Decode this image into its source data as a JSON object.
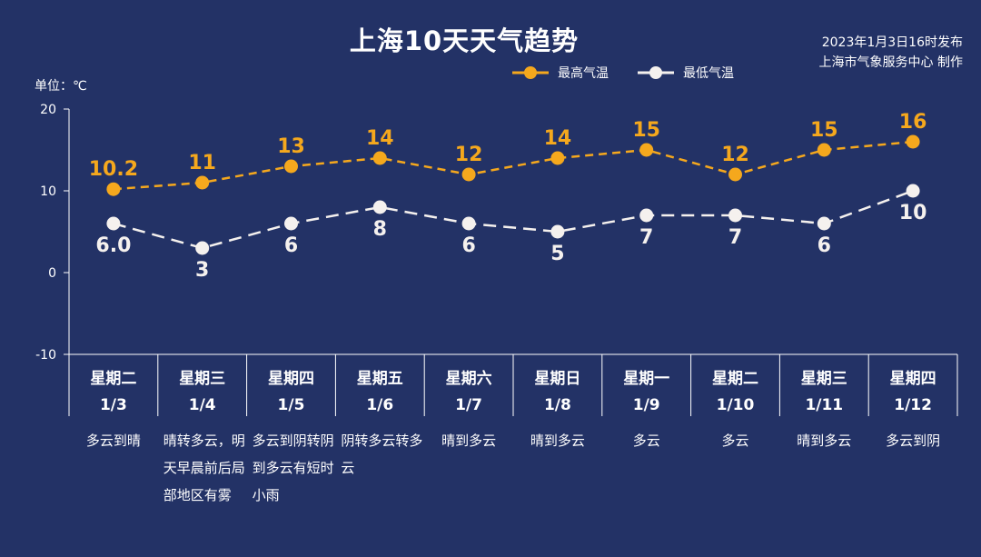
{
  "title": "上海10天天气趋势",
  "issue_time": "2023年1月3日16时发布",
  "issuer": "上海市气象服务中心 制作",
  "unit_label": "单位：℃",
  "colors": {
    "background": "#233266",
    "high": "#f5a81d",
    "low": "#f5f1ee",
    "axis": "#ffffff"
  },
  "chart_data": {
    "type": "line",
    "title": "上海10天天气趋势",
    "ylabel": "单位：℃",
    "ylim": [
      -10,
      20
    ],
    "yticks": [
      "20",
      "10",
      "0",
      "-10"
    ],
    "categories": [
      "1/3",
      "1/4",
      "1/5",
      "1/6",
      "1/7",
      "1/8",
      "1/9",
      "1/10",
      "1/11",
      "1/12"
    ],
    "series": [
      {
        "name": "最高气温",
        "values": [
          10.2,
          11,
          13,
          14,
          12,
          14,
          15,
          12,
          15,
          16
        ],
        "labels": [
          "10.2",
          "11",
          "13",
          "14",
          "12",
          "14",
          "15",
          "12",
          "15",
          "16"
        ]
      },
      {
        "name": "最低气温",
        "values": [
          6.0,
          3,
          6,
          8,
          6,
          5,
          7,
          7,
          6,
          10
        ],
        "labels": [
          "6.0",
          "3",
          "6",
          "8",
          "6",
          "5",
          "7",
          "7",
          "6",
          "10"
        ]
      }
    ],
    "legend": "top-center",
    "grid": false
  },
  "days": [
    {
      "weekday": "星期二",
      "date": "1/3",
      "weather": "多云到晴"
    },
    {
      "weekday": "星期三",
      "date": "1/4",
      "weather": "晴转多云，明天早晨前后局部地区有雾"
    },
    {
      "weekday": "星期四",
      "date": "1/5",
      "weather": "多云到阴转阴到多云有短时小雨"
    },
    {
      "weekday": "星期五",
      "date": "1/6",
      "weather": "阴转多云转多云"
    },
    {
      "weekday": "星期六",
      "date": "1/7",
      "weather": "晴到多云"
    },
    {
      "weekday": "星期日",
      "date": "1/8",
      "weather": "晴到多云"
    },
    {
      "weekday": "星期一",
      "date": "1/9",
      "weather": "多云"
    },
    {
      "weekday": "星期二",
      "date": "1/10",
      "weather": "多云"
    },
    {
      "weekday": "星期三",
      "date": "1/11",
      "weather": "晴到多云"
    },
    {
      "weekday": "星期四",
      "date": "1/12",
      "weather": "多云到阴"
    }
  ]
}
